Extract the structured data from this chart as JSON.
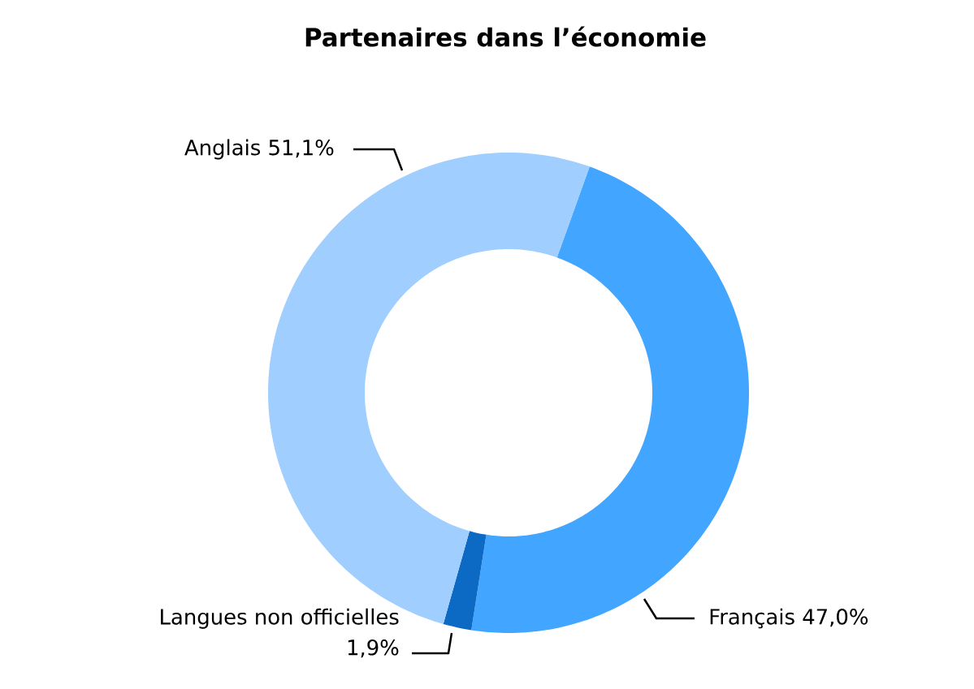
{
  "chart_data": {
    "type": "donut",
    "title": "Partenaires dans l’économie",
    "categories": [
      "Français",
      "Langues non officielles",
      "Anglais"
    ],
    "values": [
      47.0,
      1.9,
      51.1
    ],
    "value_labels": [
      "47,0%",
      "1,9%",
      "51,1%"
    ],
    "colors": [
      "#42a5ff",
      "#0d6ac4",
      "#a0cfff"
    ]
  }
}
